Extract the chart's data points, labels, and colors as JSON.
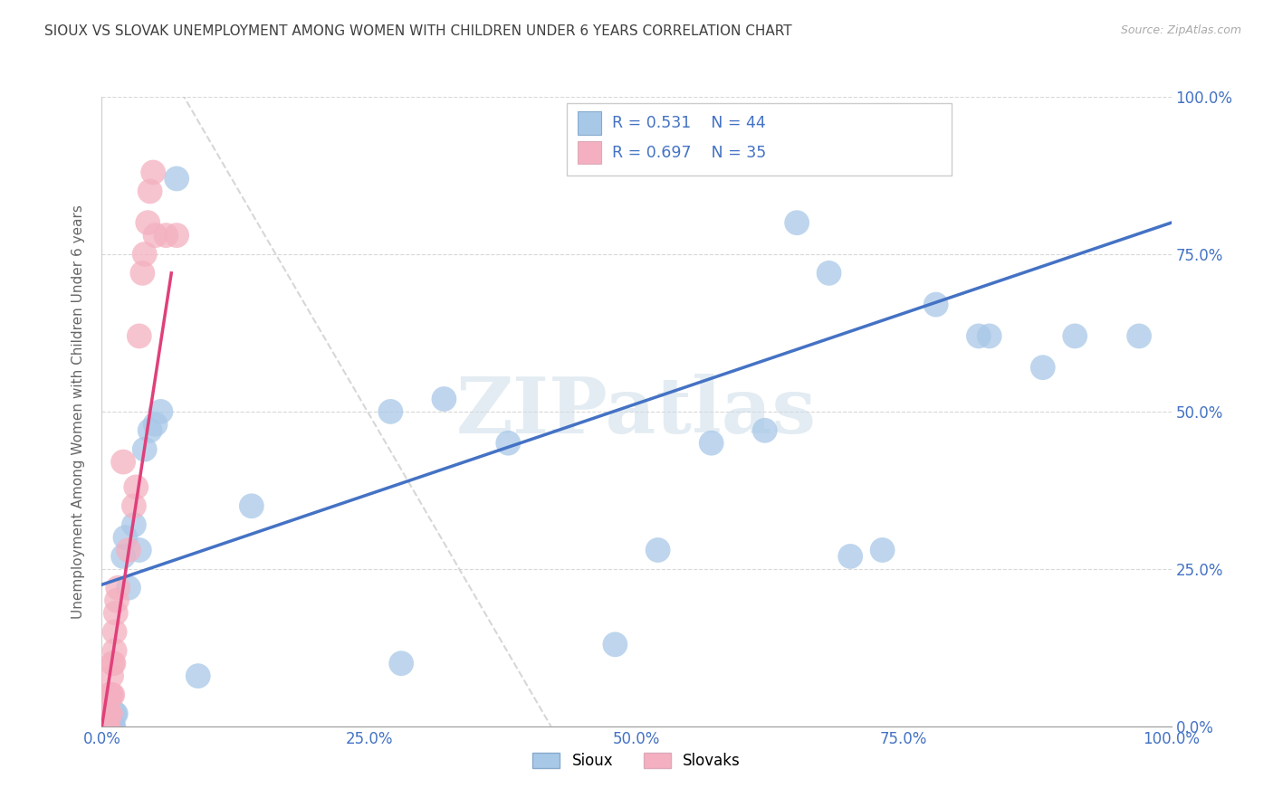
{
  "title": "SIOUX VS SLOVAK UNEMPLOYMENT AMONG WOMEN WITH CHILDREN UNDER 6 YEARS CORRELATION CHART",
  "source": "Source: ZipAtlas.com",
  "ylabel": "Unemployment Among Women with Children Under 6 years",
  "sioux_R": 0.531,
  "sioux_N": 44,
  "slovak_R": 0.697,
  "slovak_N": 35,
  "sioux_color": "#a8c8e8",
  "slovak_color": "#f4b0c0",
  "sioux_line_color": "#4472c4",
  "slovak_line_color": "#e0407a",
  "diagonal_color": "#d0d0d0",
  "title_color": "#404040",
  "axis_tick_color": "#4472c4",
  "legend_text_color": "#4472c4",
  "background_color": "#ffffff",
  "watermark": "ZIPatlas",
  "watermark_color": "#ccdde8",
  "source_color": "#aaaaaa",
  "ylabel_color": "#666666",
  "grid_color": "#d8d8d8",
  "sioux_points": [
    [
      0.001,
      0.0
    ],
    [
      0.002,
      0.0
    ],
    [
      0.003,
      0.0
    ],
    [
      0.004,
      0.0
    ],
    [
      0.005,
      0.0
    ],
    [
      0.005,
      0.01
    ],
    [
      0.006,
      0.0
    ],
    [
      0.007,
      0.0
    ],
    [
      0.008,
      0.0
    ],
    [
      0.009,
      0.0
    ],
    [
      0.01,
      0.0
    ],
    [
      0.011,
      0.0
    ],
    [
      0.012,
      0.02
    ],
    [
      0.013,
      0.02
    ],
    [
      0.02,
      0.27
    ],
    [
      0.022,
      0.3
    ],
    [
      0.025,
      0.22
    ],
    [
      0.03,
      0.32
    ],
    [
      0.035,
      0.28
    ],
    [
      0.04,
      0.44
    ],
    [
      0.045,
      0.47
    ],
    [
      0.05,
      0.48
    ],
    [
      0.055,
      0.5
    ],
    [
      0.07,
      0.87
    ],
    [
      0.09,
      0.08
    ],
    [
      0.14,
      0.35
    ],
    [
      0.27,
      0.5
    ],
    [
      0.32,
      0.52
    ],
    [
      0.38,
      0.45
    ],
    [
      0.28,
      0.1
    ],
    [
      0.48,
      0.13
    ],
    [
      0.52,
      0.28
    ],
    [
      0.57,
      0.45
    ],
    [
      0.62,
      0.47
    ],
    [
      0.65,
      0.8
    ],
    [
      0.68,
      0.72
    ],
    [
      0.7,
      0.27
    ],
    [
      0.73,
      0.28
    ],
    [
      0.78,
      0.67
    ],
    [
      0.82,
      0.62
    ],
    [
      0.83,
      0.62
    ],
    [
      0.88,
      0.57
    ],
    [
      0.91,
      0.62
    ],
    [
      0.97,
      0.62
    ]
  ],
  "slovak_points": [
    [
      0.001,
      0.0
    ],
    [
      0.002,
      0.0
    ],
    [
      0.003,
      0.0
    ],
    [
      0.004,
      0.0
    ],
    [
      0.005,
      0.0
    ],
    [
      0.005,
      0.02
    ],
    [
      0.006,
      0.0
    ],
    [
      0.006,
      0.02
    ],
    [
      0.007,
      0.02
    ],
    [
      0.007,
      0.05
    ],
    [
      0.008,
      0.02
    ],
    [
      0.008,
      0.05
    ],
    [
      0.009,
      0.05
    ],
    [
      0.009,
      0.08
    ],
    [
      0.01,
      0.05
    ],
    [
      0.01,
      0.1
    ],
    [
      0.011,
      0.1
    ],
    [
      0.012,
      0.12
    ],
    [
      0.012,
      0.15
    ],
    [
      0.013,
      0.18
    ],
    [
      0.014,
      0.2
    ],
    [
      0.015,
      0.22
    ],
    [
      0.02,
      0.42
    ],
    [
      0.025,
      0.28
    ],
    [
      0.03,
      0.35
    ],
    [
      0.032,
      0.38
    ],
    [
      0.035,
      0.62
    ],
    [
      0.038,
      0.72
    ],
    [
      0.04,
      0.75
    ],
    [
      0.043,
      0.8
    ],
    [
      0.045,
      0.85
    ],
    [
      0.048,
      0.88
    ],
    [
      0.05,
      0.78
    ],
    [
      0.06,
      0.78
    ],
    [
      0.07,
      0.78
    ]
  ],
  "xlim": [
    0.0,
    1.0
  ],
  "ylim": [
    0.0,
    1.0
  ],
  "xticks": [
    0.0,
    0.25,
    0.5,
    0.75,
    1.0
  ],
  "yticks": [
    0.0,
    0.25,
    0.5,
    0.75,
    1.0
  ],
  "xticklabels": [
    "0.0%",
    "25.0%",
    "50.0%",
    "75.0%",
    "100.0%"
  ],
  "yticklabels": [
    "0.0%",
    "25.0%",
    "50.0%",
    "75.0%",
    "100.0%"
  ],
  "sioux_line_x": [
    0.0,
    1.0
  ],
  "sioux_line_y": [
    0.225,
    0.8
  ],
  "slovak_line_x": [
    0.0,
    0.065
  ],
  "slovak_line_y": [
    0.0,
    0.72
  ]
}
